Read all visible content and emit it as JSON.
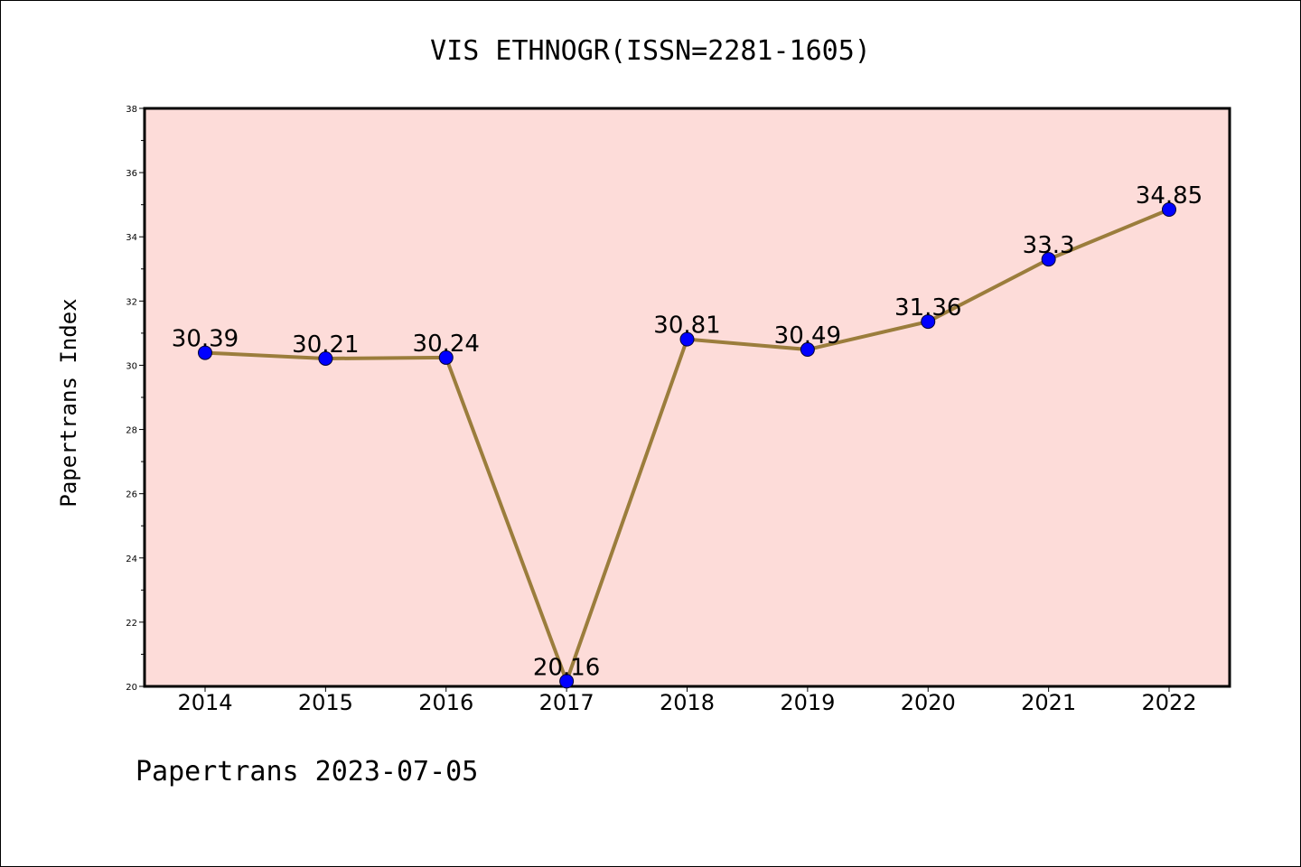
{
  "footer": "Papertrans 2023-07-05",
  "chart_data": {
    "type": "line",
    "title": "VIS ETHNOGR(ISSN=2281-1605)",
    "xlabel": "",
    "ylabel": "Papertrans Index",
    "categories": [
      "2014",
      "2015",
      "2016",
      "2017",
      "2018",
      "2019",
      "2020",
      "2021",
      "2022"
    ],
    "values": [
      30.39,
      30.21,
      30.24,
      20.16,
      30.81,
      30.49,
      31.36,
      33.3,
      34.85
    ],
    "data_labels": [
      "30.39",
      "30.21",
      "30.24",
      "20.16",
      "30.81",
      "30.49",
      "31.36",
      "33.3",
      "34.85"
    ],
    "ylim": [
      20,
      38
    ],
    "yticks": [
      "20",
      "22",
      "24",
      "26",
      "28",
      "30",
      "32",
      "34",
      "36",
      "38"
    ],
    "grid": false,
    "legend": "none",
    "colors": {
      "plot_background": "#fddcd9",
      "line": "#9b7d3c",
      "marker": "#0000ff"
    }
  }
}
